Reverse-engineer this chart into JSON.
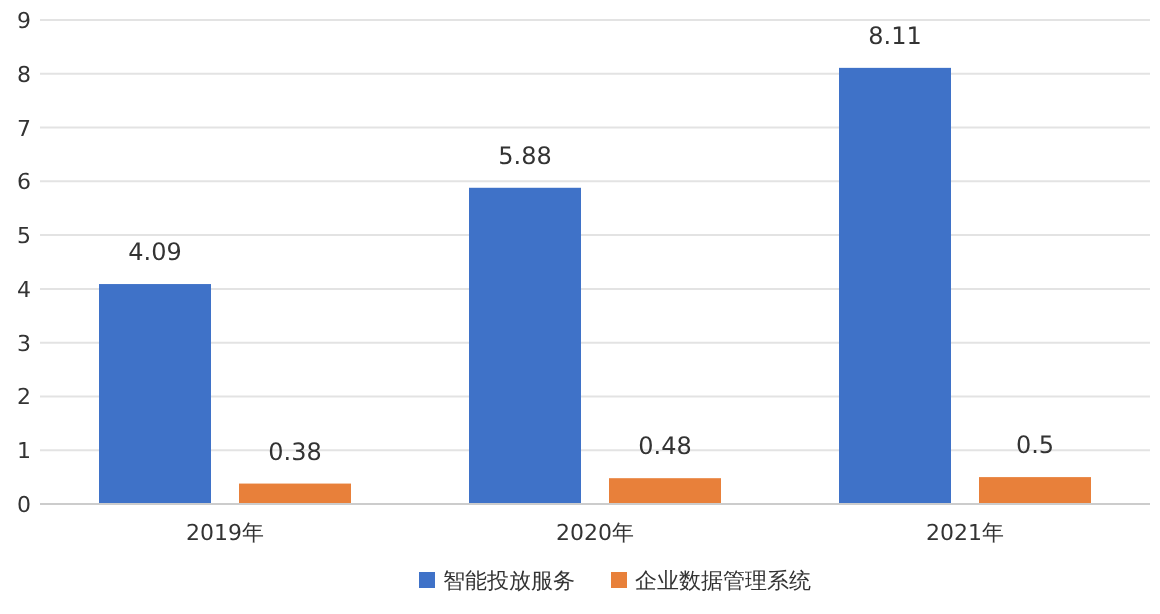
{
  "chart_data": {
    "type": "bar",
    "categories": [
      "2019年",
      "2020年",
      "2021年"
    ],
    "series": [
      {
        "name": "智能投放服务",
        "color": "#3f72c8",
        "values": [
          4.09,
          5.88,
          8.11
        ]
      },
      {
        "name": "企业数据管理系统",
        "color": "#e8803a",
        "values": [
          0.38,
          0.48,
          0.5
        ]
      }
    ],
    "ylim": [
      0,
      9
    ],
    "yticks": [
      0,
      1,
      2,
      3,
      4,
      5,
      6,
      7,
      8,
      9
    ],
    "grid": "y",
    "legend": "bottom",
    "data_labels": true
  }
}
